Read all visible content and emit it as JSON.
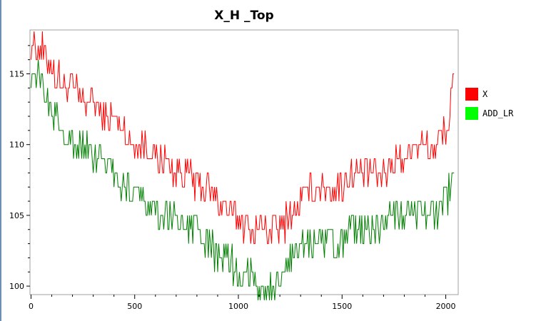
{
  "chart_data": {
    "type": "line",
    "title": "X_H _Top",
    "xlabel": "",
    "ylabel": "",
    "xlim": [
      -5,
      2060
    ],
    "ylim": [
      99.4,
      118.1
    ],
    "x_ticks": [
      0,
      500,
      1000,
      1500,
      2000
    ],
    "y_ticks": [
      100,
      105,
      110,
      115
    ],
    "grid": false,
    "legend_position": "right",
    "series": [
      {
        "name": "X",
        "color": "#ff0000",
        "points": [
          [
            0,
            117
          ],
          [
            40,
            117
          ],
          [
            80,
            116
          ],
          [
            120,
            115
          ],
          [
            160,
            114
          ],
          [
            200,
            114
          ],
          [
            250,
            113
          ],
          [
            300,
            113
          ],
          [
            350,
            112
          ],
          [
            400,
            112
          ],
          [
            450,
            111
          ],
          [
            500,
            110
          ],
          [
            550,
            110
          ],
          [
            600,
            109
          ],
          [
            650,
            109
          ],
          [
            700,
            108
          ],
          [
            750,
            108
          ],
          [
            800,
            107
          ],
          [
            850,
            107
          ],
          [
            900,
            106
          ],
          [
            950,
            105
          ],
          [
            1000,
            105
          ],
          [
            1050,
            104
          ],
          [
            1100,
            104
          ],
          [
            1150,
            104
          ],
          [
            1200,
            104
          ],
          [
            1250,
            105
          ],
          [
            1300,
            106
          ],
          [
            1350,
            107
          ],
          [
            1400,
            107
          ],
          [
            1450,
            107
          ],
          [
            1500,
            107
          ],
          [
            1550,
            108
          ],
          [
            1600,
            108
          ],
          [
            1650,
            108
          ],
          [
            1700,
            108
          ],
          [
            1750,
            109
          ],
          [
            1800,
            109
          ],
          [
            1850,
            110
          ],
          [
            1900,
            110
          ],
          [
            1950,
            110
          ],
          [
            2000,
            111
          ],
          [
            2020,
            112
          ],
          [
            2040,
            115
          ]
        ]
      },
      {
        "name": "ADD_LR",
        "color": "#007f00",
        "points": [
          [
            0,
            115
          ],
          [
            40,
            115
          ],
          [
            80,
            113
          ],
          [
            120,
            112
          ],
          [
            160,
            111
          ],
          [
            200,
            110
          ],
          [
            250,
            110
          ],
          [
            300,
            109
          ],
          [
            350,
            109
          ],
          [
            400,
            108
          ],
          [
            450,
            107
          ],
          [
            500,
            107
          ],
          [
            550,
            106
          ],
          [
            600,
            105
          ],
          [
            650,
            105
          ],
          [
            700,
            105
          ],
          [
            750,
            104
          ],
          [
            800,
            104
          ],
          [
            850,
            103
          ],
          [
            900,
            102
          ],
          [
            950,
            102
          ],
          [
            1000,
            101
          ],
          [
            1050,
            101
          ],
          [
            1100,
            100
          ],
          [
            1150,
            100
          ],
          [
            1200,
            100
          ],
          [
            1250,
            102
          ],
          [
            1300,
            103
          ],
          [
            1350,
            103
          ],
          [
            1400,
            103
          ],
          [
            1450,
            103
          ],
          [
            1500,
            103
          ],
          [
            1550,
            104
          ],
          [
            1600,
            104
          ],
          [
            1650,
            104
          ],
          [
            1700,
            104
          ],
          [
            1750,
            105
          ],
          [
            1800,
            105
          ],
          [
            1850,
            105
          ],
          [
            1900,
            105
          ],
          [
            1950,
            105
          ],
          [
            2000,
            106
          ],
          [
            2020,
            107
          ],
          [
            2040,
            108
          ]
        ]
      }
    ]
  },
  "legend": {
    "items": [
      {
        "label": "X",
        "color": "#ff0000"
      },
      {
        "label": "ADD_LR",
        "color": "#00ff00"
      }
    ]
  }
}
